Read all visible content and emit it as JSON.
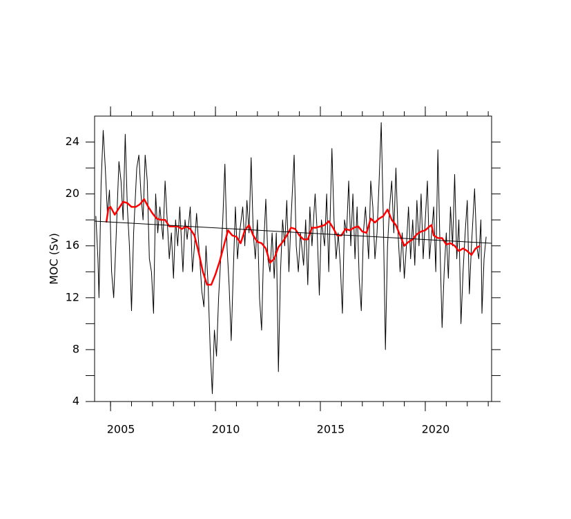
{
  "chart_data": {
    "type": "line",
    "y_label": "MOC (Sv)",
    "xlim": [
      2004.24,
      2023.16
    ],
    "ylim": [
      4,
      26
    ],
    "xticks": [
      2005,
      2010,
      2015,
      2020
    ],
    "xminorticks": [
      2005,
      2006,
      2007,
      2008,
      2009,
      2010,
      2011,
      2012,
      2013,
      2014,
      2015,
      2016,
      2017,
      2018,
      2019,
      2020,
      2021,
      2022,
      2023
    ],
    "yticks": [
      4,
      8,
      12,
      16,
      20,
      24
    ],
    "yminorticks": [
      6,
      10,
      14,
      18,
      22
    ],
    "grid": false,
    "series": [
      {
        "color": "#000000",
        "width": 1,
        "x": [
          2004.3,
          2004.4,
          2004.45,
          2004.55,
          2004.65,
          2004.75,
          2004.85,
          2004.95,
          2005.05,
          2005.15,
          2005.25,
          2005.4,
          2005.5,
          2005.6,
          2005.7,
          2005.8,
          2005.9,
          2006.0,
          2006.1,
          2006.25,
          2006.35,
          2006.45,
          2006.55,
          2006.65,
          2006.75,
          2006.85,
          2006.95,
          2007.05,
          2007.15,
          2007.25,
          2007.35,
          2007.5,
          2007.6,
          2007.7,
          2007.8,
          2007.9,
          2008.0,
          2008.1,
          2008.2,
          2008.3,
          2008.45,
          2008.55,
          2008.65,
          2008.8,
          2008.9,
          2009.0,
          2009.1,
          2009.25,
          2009.35,
          2009.45,
          2009.55,
          2009.65,
          2009.75,
          2009.85,
          2009.95,
          2010.05,
          2010.15,
          2010.25,
          2010.35,
          2010.45,
          2010.55,
          2010.65,
          2010.75,
          2010.85,
          2010.95,
          2011.05,
          2011.15,
          2011.3,
          2011.4,
          2011.5,
          2011.6,
          2011.7,
          2011.8,
          2011.9,
          2012.0,
          2012.1,
          2012.2,
          2012.3,
          2012.4,
          2012.5,
          2012.6,
          2012.7,
          2012.8,
          2012.9,
          2013.0,
          2013.1,
          2013.2,
          2013.3,
          2013.4,
          2013.5,
          2013.6,
          2013.75,
          2013.85,
          2013.95,
          2014.05,
          2014.2,
          2014.3,
          2014.4,
          2014.5,
          2014.6,
          2014.75,
          2014.85,
          2014.95,
          2015.05,
          2015.2,
          2015.3,
          2015.4,
          2015.55,
          2015.65,
          2015.75,
          2015.85,
          2015.95,
          2016.05,
          2016.15,
          2016.25,
          2016.35,
          2016.45,
          2016.55,
          2016.65,
          2016.75,
          2016.85,
          2016.95,
          2017.05,
          2017.15,
          2017.3,
          2017.4,
          2017.5,
          2017.6,
          2017.7,
          2017.8,
          2017.9,
          2018.0,
          2018.1,
          2018.2,
          2018.3,
          2018.4,
          2018.5,
          2018.6,
          2018.7,
          2018.8,
          2018.9,
          2019.0,
          2019.1,
          2019.2,
          2019.3,
          2019.4,
          2019.5,
          2019.6,
          2019.7,
          2019.8,
          2019.9,
          2020.0,
          2020.1,
          2020.2,
          2020.3,
          2020.4,
          2020.5,
          2020.6,
          2020.7,
          2020.8,
          2020.9,
          2021.0,
          2021.1,
          2021.2,
          2021.3,
          2021.4,
          2021.5,
          2021.6,
          2021.7,
          2021.8,
          2021.9,
          2022.0,
          2022.1,
          2022.2,
          2022.35,
          2022.45,
          2022.55,
          2022.65,
          2022.7,
          2022.8,
          2022.9
        ],
        "values": [
          18.3,
          15,
          12,
          20.8,
          24.9,
          22,
          18.5,
          20.3,
          14,
          12,
          16,
          22.5,
          21,
          18,
          24.6,
          19,
          16,
          11,
          17,
          22,
          23,
          20,
          18,
          23,
          21,
          15,
          14,
          10.8,
          20,
          17,
          19,
          16.5,
          21,
          18,
          15,
          17,
          13.5,
          18,
          16,
          19,
          14,
          18,
          16.5,
          19,
          14,
          16,
          18.5,
          15,
          12.5,
          11.3,
          16,
          13,
          8,
          4.6,
          9.5,
          7.5,
          12,
          15,
          18,
          22.3,
          16,
          13,
          8.7,
          14,
          19,
          15,
          17,
          19,
          16,
          19.5,
          17,
          22.8,
          17,
          15,
          18,
          12,
          9.5,
          16,
          19.6,
          15,
          14,
          17,
          13.5,
          17,
          6.3,
          14,
          18,
          16,
          19.5,
          14,
          18,
          23,
          16,
          14,
          17,
          14.5,
          18,
          13,
          19,
          16,
          20,
          17,
          12.2,
          18,
          16,
          20,
          14,
          23.5,
          18,
          15,
          17,
          14.5,
          10.8,
          18,
          17,
          21,
          16,
          20,
          15,
          19,
          13.5,
          11,
          17,
          19,
          15,
          21,
          19,
          15,
          17,
          21,
          25.5,
          18,
          8,
          16,
          19,
          21,
          17,
          22,
          17,
          14,
          17,
          13.5,
          16,
          19,
          15,
          18,
          14.5,
          19.5,
          16,
          20,
          15,
          18,
          21,
          15,
          17,
          19,
          14,
          23.4,
          16,
          9.7,
          14,
          17,
          13.5,
          19,
          16,
          21.5,
          15,
          18,
          10,
          14,
          17,
          19.5,
          12.3,
          16,
          20.4,
          16,
          15,
          18,
          10.8,
          15,
          16.7
        ]
      },
      {
        "color": "#ff0000",
        "width": 2.5,
        "x": [
          2004.8,
          2004.9,
          2005.0,
          2005.2,
          2005.4,
          2005.6,
          2005.8,
          2006.0,
          2006.2,
          2006.4,
          2006.6,
          2006.8,
          2007.0,
          2007.2,
          2007.4,
          2007.6,
          2007.8,
          2008.0,
          2008.2,
          2008.4,
          2008.6,
          2008.8,
          2009.0,
          2009.2,
          2009.4,
          2009.6,
          2009.8,
          2010.0,
          2010.2,
          2010.4,
          2010.6,
          2010.8,
          2011.0,
          2011.2,
          2011.4,
          2011.6,
          2011.8,
          2012.0,
          2012.2,
          2012.4,
          2012.6,
          2012.8,
          2013.0,
          2013.2,
          2013.4,
          2013.6,
          2013.8,
          2014.0,
          2014.2,
          2014.4,
          2014.6,
          2014.8,
          2015.0,
          2015.2,
          2015.4,
          2015.6,
          2015.8,
          2016.0,
          2016.2,
          2016.4,
          2016.6,
          2016.8,
          2017.0,
          2017.2,
          2017.4,
          2017.6,
          2017.8,
          2018.0,
          2018.2,
          2018.4,
          2018.6,
          2018.8,
          2019.0,
          2019.2,
          2019.4,
          2019.6,
          2019.8,
          2020.0,
          2020.2,
          2020.3,
          2020.4,
          2020.6,
          2020.8,
          2021.0,
          2021.2,
          2021.4,
          2021.6,
          2021.8,
          2022.0,
          2022.2,
          2022.4,
          2022.6
        ],
        "values": [
          17.8,
          18.9,
          19.0,
          18.4,
          18.9,
          19.4,
          19.3,
          19.0,
          19.0,
          19.2,
          19.6,
          19.0,
          18.5,
          18.1,
          18.0,
          18.0,
          17.5,
          17.5,
          17.5,
          17.3,
          17.5,
          17.3,
          16.8,
          15.5,
          14.0,
          13.0,
          13.0,
          13.8,
          14.8,
          16.0,
          17.2,
          16.8,
          16.7,
          16.2,
          17.2,
          17.6,
          16.8,
          16.3,
          16.2,
          15.8,
          14.7,
          15.0,
          15.9,
          16.3,
          16.8,
          17.4,
          17.3,
          16.8,
          16.5,
          16.5,
          17.4,
          17.4,
          17.5,
          17.6,
          17.9,
          17.4,
          16.8,
          16.8,
          17.3,
          17.2,
          17.4,
          17.5,
          17.1,
          17.0,
          18.1,
          17.8,
          18.1,
          18.3,
          18.8,
          18.0,
          17.6,
          16.8,
          16.0,
          16.3,
          16.5,
          16.9,
          17.1,
          17.2,
          17.5,
          17.6,
          16.8,
          16.6,
          16.6,
          16.1,
          16.2,
          16.0,
          15.6,
          15.8,
          15.6,
          15.3,
          15.8,
          16.0
        ]
      },
      {
        "color": "#000000",
        "width": 1,
        "x": [
          2004.24,
          2023.16
        ],
        "values": [
          17.9,
          16.2
        ]
      }
    ]
  }
}
